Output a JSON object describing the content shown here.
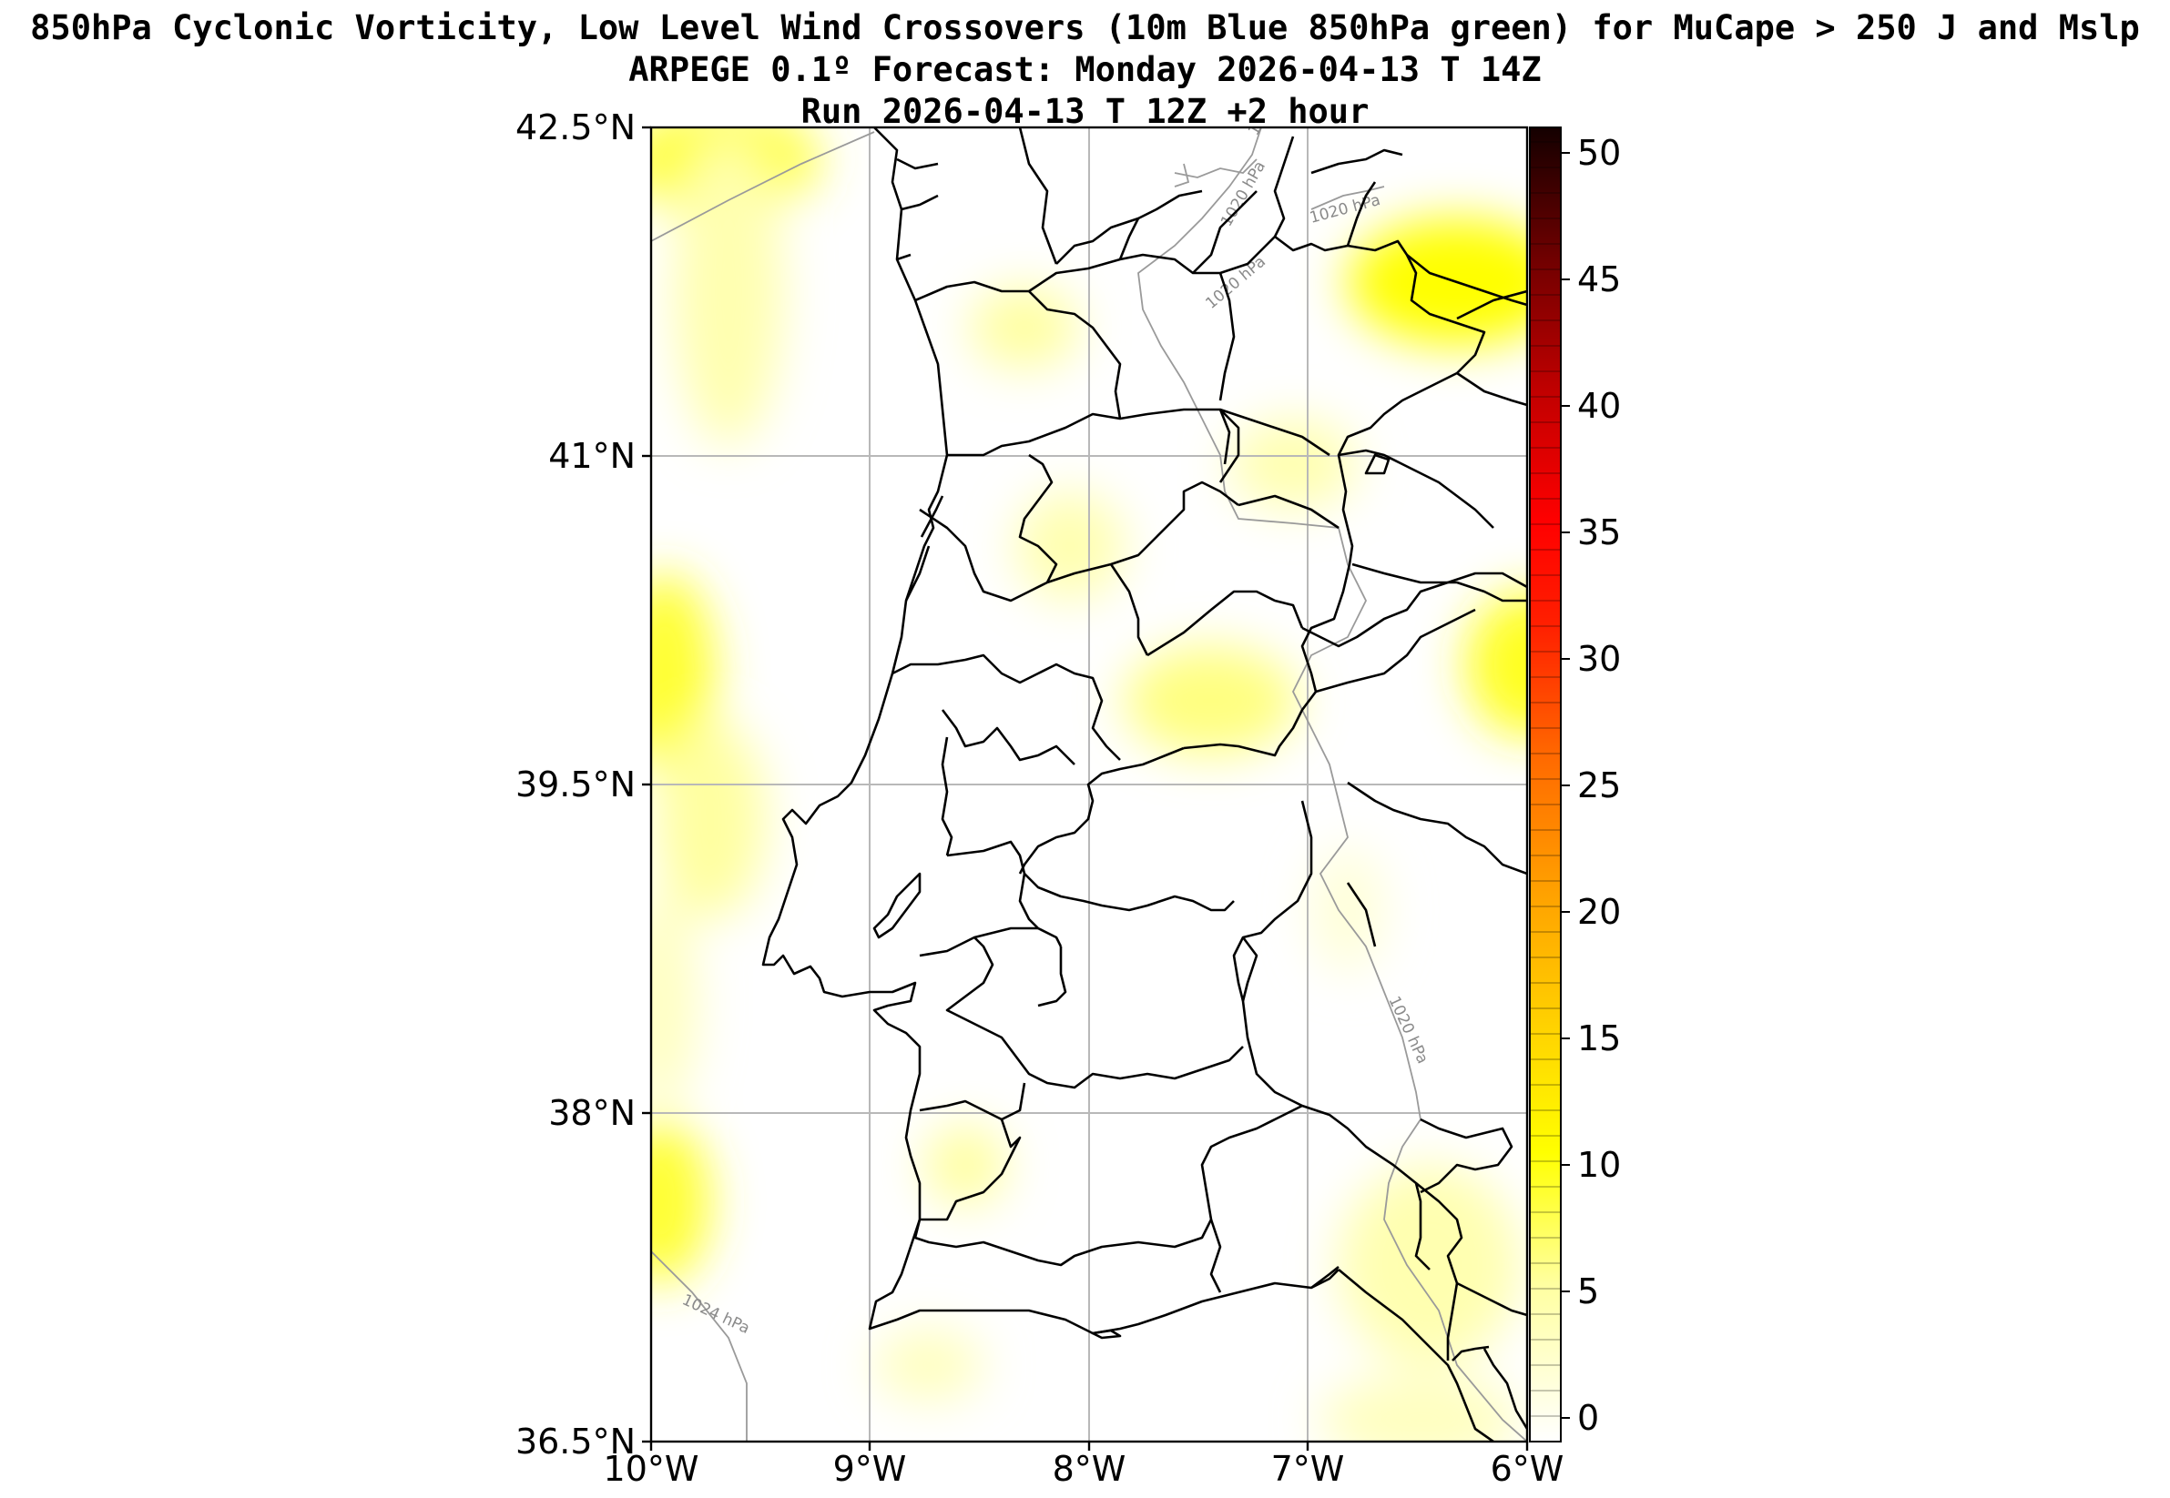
{
  "titles": {
    "line1": "850hPa Cyclonic Vorticity, Low Level Wind Crossovers (10m Blue 850hPa green) for MuCape > 250 J and Mslp",
    "line2": "ARPEGE 0.1º Forecast: Monday 2026-04-13 T 14Z",
    "line3": "Run 2026-04-13 T 12Z +2 hour"
  },
  "map": {
    "lat_labels": [
      "42.5°N",
      "41°N",
      "39.5°N",
      "38°N",
      "36.5°N"
    ],
    "lon_labels": [
      "10°W",
      "9°W",
      "8°W",
      "7°W",
      "6°W"
    ],
    "isobar_labels": [
      "1020 hPa",
      "1020 hPa",
      "1020 hPa",
      "1020 hPa",
      "1020 hPa",
      "1024 hPa"
    ]
  },
  "colorbar": {
    "ticks": [
      "50",
      "45",
      "40",
      "35",
      "30",
      "25",
      "20",
      "15",
      "10",
      "5",
      "0"
    ],
    "colors": {
      "low": "#ffffe0",
      "mid": "#ffff00",
      "orange": "#ff8000",
      "red": "#ff0000",
      "dark": "#100000"
    }
  }
}
